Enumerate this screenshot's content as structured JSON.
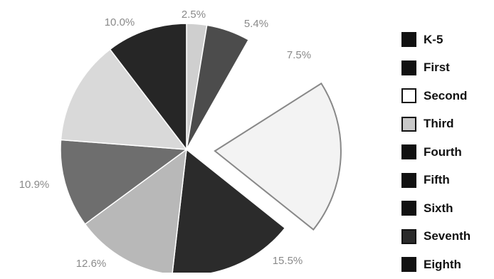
{
  "chart_data": {
    "type": "pie",
    "title": "",
    "slices": [
      {
        "name": "",
        "value": 2.5,
        "label": "2.5%",
        "color": "#cfcfcf",
        "exploded": false
      },
      {
        "name": "",
        "value": 5.4,
        "label": "5.4%",
        "color": "#4c4c4c",
        "exploded": false
      },
      {
        "name": "",
        "value": 7.5,
        "label": "7.5%",
        "color": "#ffffff",
        "exploded": false
      },
      {
        "name": "",
        "value": 19.0,
        "label": "",
        "color": "#f3f3f3",
        "exploded": true
      },
      {
        "name": "",
        "value": 15.5,
        "label": "15.5%",
        "color": "#2b2b2b",
        "exploded": false
      },
      {
        "name": "",
        "value": 12.6,
        "label": "12.6%",
        "color": "#b8b8b8",
        "exploded": false
      },
      {
        "name": "",
        "value": 10.9,
        "label": "10.9%",
        "color": "#6e6e6e",
        "exploded": false
      },
      {
        "name": "",
        "value": 12.9,
        "label": "",
        "color": "#d9d9d9",
        "exploded": false
      },
      {
        "name": "",
        "value": 10.0,
        "label": "10.0%",
        "color": "#262626",
        "exploded": false
      }
    ],
    "legend": {
      "placement": "right",
      "items": [
        {
          "label": "K-5",
          "color": "#111111"
        },
        {
          "label": "First",
          "color": "#111111"
        },
        {
          "label": "Second",
          "color": "#ffffff"
        },
        {
          "label": "Third",
          "color": "#c8c8c8"
        },
        {
          "label": "Fourth",
          "color": "#111111"
        },
        {
          "label": "Fifth",
          "color": "#111111"
        },
        {
          "label": "Sixth",
          "color": "#111111"
        },
        {
          "label": "Seventh",
          "color": "#2a2a2a"
        },
        {
          "label": "Eighth",
          "color": "#111111"
        }
      ]
    }
  }
}
